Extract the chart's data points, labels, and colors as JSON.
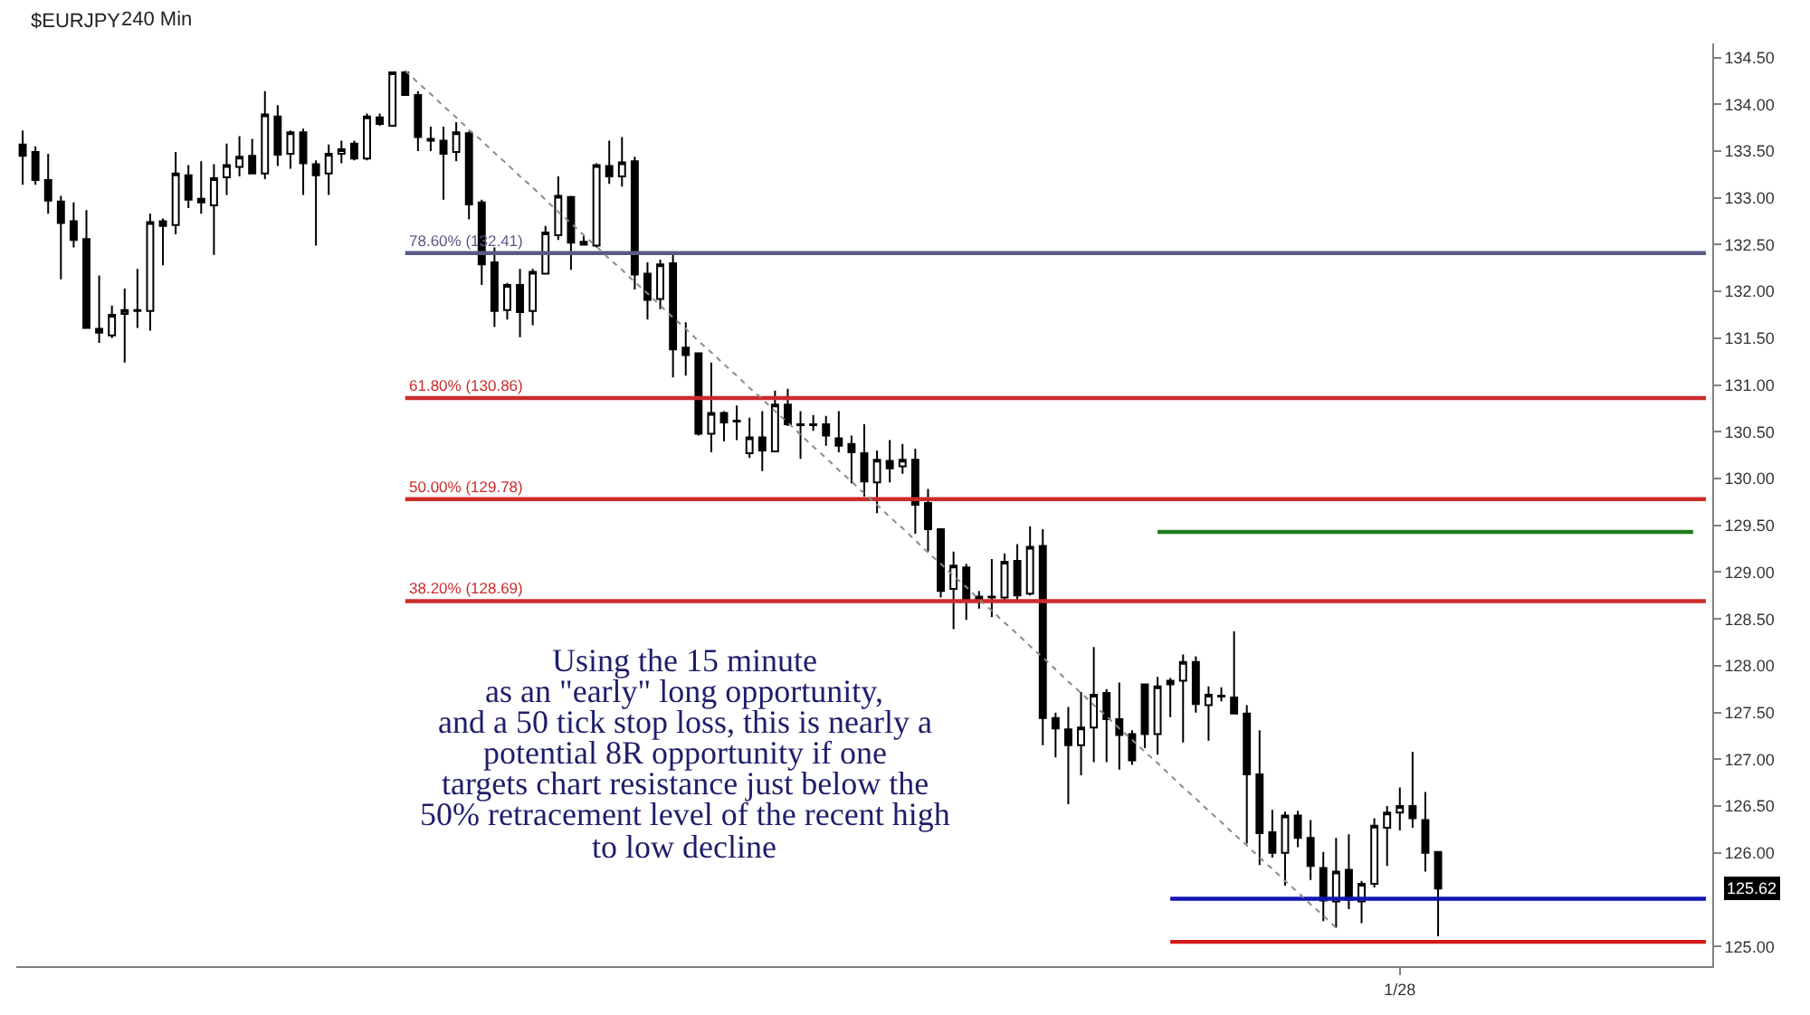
{
  "chart_data": {
    "type": "candlestick",
    "title": "$EURJPY",
    "subtitle": "240 Min",
    "color": "#000000",
    "categories": [
      null,
      null,
      null,
      null,
      null,
      null,
      null,
      null,
      null,
      null,
      null,
      null,
      null,
      null,
      null,
      null,
      null,
      null,
      null,
      null,
      null,
      null,
      null,
      null,
      null,
      null,
      null,
      null,
      null,
      null,
      null,
      null,
      null,
      null,
      null,
      null,
      null,
      null,
      null,
      null,
      null,
      null,
      null,
      null,
      null,
      null,
      null,
      null,
      null,
      null,
      null,
      null,
      null,
      null,
      null,
      null,
      null,
      null,
      null,
      null,
      null,
      null,
      null,
      null,
      null,
      null,
      null,
      null,
      null,
      null,
      null,
      null,
      null,
      null,
      null,
      null,
      null,
      null,
      null,
      null,
      null,
      null,
      null,
      null,
      null,
      null,
      null,
      null,
      null,
      null,
      null,
      null,
      null,
      null,
      null,
      null,
      null,
      null,
      null,
      null,
      null,
      null,
      null,
      null,
      null,
      null,
      null,
      null,
      "1/28",
      null,
      null,
      null,
      null,
      null,
      null,
      null,
      null,
      null,
      null,
      null,
      null,
      null,
      null,
      null,
      null,
      null,
      null,
      null,
      null,
      null,
      null,
      null,
      null
    ],
    "ohlc": [
      [
        133.57,
        133.72,
        133.14,
        133.45
      ],
      [
        133.49,
        133.55,
        133.14,
        133.19
      ],
      [
        133.19,
        133.47,
        132.83,
        132.97
      ],
      [
        132.96,
        133.02,
        132.13,
        132.73
      ],
      [
        132.75,
        132.95,
        132.47,
        132.55
      ],
      [
        132.56,
        132.87,
        131.6,
        131.61
      ],
      [
        131.6,
        132.17,
        131.45,
        131.56
      ],
      [
        131.53,
        131.85,
        131.5,
        131.75
      ],
      [
        131.76,
        132.03,
        131.24,
        131.8
      ],
      [
        131.79,
        132.24,
        131.61,
        131.8
      ],
      [
        131.79,
        132.83,
        131.58,
        132.74
      ],
      [
        132.75,
        132.78,
        132.28,
        132.7
      ],
      [
        132.71,
        133.49,
        132.61,
        133.26
      ],
      [
        133.24,
        133.35,
        132.89,
        132.98
      ],
      [
        132.99,
        133.39,
        132.83,
        132.95
      ],
      [
        132.92,
        133.36,
        132.39,
        133.21
      ],
      [
        133.22,
        133.58,
        133.03,
        133.35
      ],
      [
        133.33,
        133.66,
        133.23,
        133.44
      ],
      [
        133.45,
        133.63,
        133.25,
        133.26
      ],
      [
        133.26,
        134.14,
        133.2,
        133.89
      ],
      [
        133.87,
        133.99,
        133.34,
        133.46
      ],
      [
        133.47,
        133.72,
        133.31,
        133.7
      ],
      [
        133.7,
        133.74,
        133.03,
        133.37
      ],
      [
        133.36,
        133.4,
        132.49,
        133.24
      ],
      [
        133.26,
        133.57,
        133.03,
        133.47
      ],
      [
        133.47,
        133.61,
        133.37,
        133.52
      ],
      [
        133.58,
        133.61,
        133.4,
        133.42
      ],
      [
        133.42,
        133.9,
        133.4,
        133.87
      ],
      [
        133.86,
        133.9,
        133.77,
        133.79
      ],
      [
        133.77,
        134.35,
        133.76,
        134.34
      ],
      [
        134.34,
        134.36,
        134.09,
        134.1
      ],
      [
        134.1,
        134.14,
        133.5,
        133.65
      ],
      [
        133.63,
        133.76,
        133.5,
        133.61
      ],
      [
        133.61,
        133.76,
        132.98,
        133.47
      ],
      [
        133.49,
        133.81,
        133.39,
        133.7
      ],
      [
        133.69,
        133.71,
        132.77,
        132.93
      ],
      [
        132.95,
        132.98,
        132.07,
        132.29
      ],
      [
        132.31,
        132.47,
        131.62,
        131.79
      ],
      [
        131.8,
        132.09,
        131.7,
        132.07
      ],
      [
        132.07,
        132.24,
        131.51,
        131.78
      ],
      [
        131.79,
        132.24,
        131.64,
        132.21
      ],
      [
        132.19,
        132.7,
        132.19,
        132.63
      ],
      [
        132.6,
        133.23,
        132.55,
        133.02
      ],
      [
        133.01,
        133.02,
        132.23,
        132.52
      ],
      [
        132.53,
        132.59,
        132.49,
        132.5
      ],
      [
        132.49,
        133.37,
        132.47,
        133.35
      ],
      [
        133.34,
        133.61,
        133.15,
        133.23
      ],
      [
        133.23,
        133.65,
        133.12,
        133.38
      ],
      [
        133.39,
        133.44,
        132.02,
        132.18
      ],
      [
        132.19,
        132.31,
        131.7,
        131.91
      ],
      [
        131.92,
        132.34,
        131.81,
        132.29
      ],
      [
        132.3,
        132.42,
        131.08,
        131.38
      ],
      [
        131.4,
        131.67,
        131.1,
        131.32
      ],
      [
        131.34,
        131.35,
        130.46,
        130.48
      ],
      [
        130.48,
        131.24,
        130.28,
        130.7
      ],
      [
        130.7,
        130.72,
        130.4,
        130.6
      ],
      [
        130.62,
        130.78,
        130.41,
        130.61
      ],
      [
        130.27,
        130.65,
        130.22,
        130.44
      ],
      [
        130.44,
        130.72,
        130.08,
        130.3
      ],
      [
        130.29,
        130.94,
        130.29,
        130.79
      ],
      [
        130.79,
        130.96,
        130.56,
        130.58
      ],
      [
        130.58,
        130.72,
        130.21,
        130.57
      ],
      [
        130.58,
        130.68,
        130.51,
        130.57
      ],
      [
        130.58,
        130.67,
        130.35,
        130.46
      ],
      [
        130.43,
        130.72,
        130.28,
        130.35
      ],
      [
        130.37,
        130.46,
        129.95,
        130.28
      ],
      [
        130.27,
        130.58,
        129.81,
        129.97
      ],
      [
        129.96,
        130.3,
        129.63,
        130.2
      ],
      [
        130.19,
        130.41,
        129.96,
        130.11
      ],
      [
        130.13,
        130.37,
        130.05,
        130.2
      ],
      [
        130.2,
        130.32,
        129.41,
        129.72
      ],
      [
        129.74,
        129.89,
        129.22,
        129.46
      ],
      [
        129.46,
        129.47,
        128.73,
        128.8
      ],
      [
        128.82,
        129.22,
        128.39,
        129.07
      ],
      [
        129.05,
        129.09,
        128.49,
        128.69
      ],
      [
        128.7,
        128.8,
        128.61,
        128.74
      ],
      [
        128.74,
        129.14,
        128.52,
        128.73
      ],
      [
        128.73,
        129.2,
        128.69,
        129.11
      ],
      [
        129.12,
        129.3,
        128.69,
        128.75
      ],
      [
        128.77,
        129.49,
        128.75,
        129.27
      ],
      [
        129.28,
        129.46,
        127.15,
        127.44
      ],
      [
        127.44,
        127.5,
        127.02,
        127.33
      ],
      [
        127.32,
        127.56,
        126.52,
        127.15
      ],
      [
        127.15,
        127.72,
        126.83,
        127.34
      ],
      [
        127.34,
        128.2,
        126.97,
        127.69
      ],
      [
        127.71,
        127.75,
        126.97,
        127.43
      ],
      [
        127.43,
        127.82,
        126.89,
        127.26
      ],
      [
        127.27,
        127.31,
        126.94,
        126.99
      ],
      [
        127.8,
        127.81,
        127.12,
        127.27
      ],
      [
        127.27,
        127.88,
        127.05,
        127.78
      ],
      [
        127.8,
        127.87,
        127.45,
        127.84
      ],
      [
        127.84,
        128.12,
        127.18,
        128.04
      ],
      [
        128.04,
        128.1,
        127.5,
        127.59
      ],
      [
        127.58,
        127.78,
        127.2,
        127.69
      ],
      [
        127.68,
        127.77,
        127.62,
        127.67
      ],
      [
        127.66,
        128.37,
        127.48,
        127.49
      ],
      [
        127.49,
        127.58,
        126.1,
        126.84
      ],
      [
        126.84,
        127.31,
        125.87,
        126.21
      ],
      [
        126.22,
        126.46,
        125.95,
        126.0
      ],
      [
        126.0,
        126.44,
        125.65,
        126.4
      ],
      [
        126.4,
        126.45,
        126.06,
        126.16
      ],
      [
        126.16,
        126.35,
        125.71,
        125.86
      ],
      [
        125.84,
        126.01,
        125.27,
        125.49
      ],
      [
        125.48,
        126.16,
        125.2,
        125.8
      ],
      [
        125.82,
        126.2,
        125.4,
        125.5
      ],
      [
        125.48,
        125.7,
        125.25,
        125.67
      ],
      [
        125.67,
        126.37,
        125.63,
        126.29
      ],
      [
        126.27,
        126.5,
        125.86,
        126.43
      ],
      [
        126.43,
        126.7,
        126.24,
        126.5
      ],
      [
        126.5,
        127.08,
        126.27,
        126.37
      ],
      [
        126.35,
        126.65,
        125.8,
        126.0
      ],
      [
        126.01,
        126.01,
        125.11,
        125.62
      ],
      null,
      null,
      null,
      null,
      null,
      null,
      null,
      null,
      null,
      null,
      null,
      null,
      null,
      null,
      null,
      null,
      null,
      null,
      null,
      null,
      null
    ],
    "series": [
      {
        "type": "line",
        "name": "78.60% (132.41)",
        "color": "#5a5a86",
        "values": [
          null,
          null,
          null,
          null,
          null,
          null,
          null,
          null,
          null,
          null,
          null,
          null,
          null,
          null,
          null,
          null,
          null,
          null,
          null,
          null,
          null,
          null,
          null,
          null,
          null,
          null,
          null,
          null,
          null,
          null,
          132.41,
          132.41,
          132.41,
          132.41,
          132.41,
          132.41,
          132.41,
          132.41,
          132.41,
          132.41,
          132.41,
          132.41,
          132.41,
          132.41,
          132.41,
          132.41,
          132.41,
          132.41,
          132.41,
          132.41,
          132.41,
          132.41,
          132.41,
          132.41,
          132.41,
          132.41,
          132.41,
          132.41,
          132.41,
          132.41,
          132.41,
          132.41,
          132.41,
          132.41,
          132.41,
          132.41,
          132.41,
          132.41,
          132.41,
          132.41,
          132.41,
          132.41,
          132.41,
          132.41,
          132.41,
          132.41,
          132.41,
          132.41,
          132.41,
          132.41,
          132.41,
          132.41,
          132.41,
          132.41,
          132.41,
          132.41,
          132.41,
          132.41,
          132.41,
          132.41,
          132.41,
          132.41,
          132.41,
          132.41,
          132.41,
          132.41,
          132.41,
          132.41,
          132.41,
          132.41,
          132.41,
          132.41,
          132.41,
          132.41,
          132.41,
          132.41,
          132.41,
          132.41,
          132.41,
          132.41,
          132.41,
          132.41,
          132.41,
          132.41,
          132.41,
          132.41,
          132.41,
          132.41,
          132.41,
          132.41,
          132.41,
          132.41,
          132.41,
          132.41,
          132.41,
          132.41,
          132.41,
          132.41,
          132.41,
          132.41,
          132.41,
          132.41,
          132.41
        ]
      },
      {
        "type": "line",
        "name": "61.80% (130.86)",
        "color": "#cc2b2b",
        "values": [
          null,
          null,
          null,
          null,
          null,
          null,
          null,
          null,
          null,
          null,
          null,
          null,
          null,
          null,
          null,
          null,
          null,
          null,
          null,
          null,
          null,
          null,
          null,
          null,
          null,
          null,
          null,
          null,
          null,
          null,
          130.86,
          130.86,
          130.86,
          130.86,
          130.86,
          130.86,
          130.86,
          130.86,
          130.86,
          130.86,
          130.86,
          130.86,
          130.86,
          130.86,
          130.86,
          130.86,
          130.86,
          130.86,
          130.86,
          130.86,
          130.86,
          130.86,
          130.86,
          130.86,
          130.86,
          130.86,
          130.86,
          130.86,
          130.86,
          130.86,
          130.86,
          130.86,
          130.86,
          130.86,
          130.86,
          130.86,
          130.86,
          130.86,
          130.86,
          130.86,
          130.86,
          130.86,
          130.86,
          130.86,
          130.86,
          130.86,
          130.86,
          130.86,
          130.86,
          130.86,
          130.86,
          130.86,
          130.86,
          130.86,
          130.86,
          130.86,
          130.86,
          130.86,
          130.86,
          130.86,
          130.86,
          130.86,
          130.86,
          130.86,
          130.86,
          130.86,
          130.86,
          130.86,
          130.86,
          130.86,
          130.86,
          130.86,
          130.86,
          130.86,
          130.86,
          130.86,
          130.86,
          130.86,
          130.86,
          130.86,
          130.86,
          130.86,
          130.86,
          130.86,
          130.86,
          130.86,
          130.86,
          130.86,
          130.86,
          130.86,
          130.86,
          130.86,
          130.86,
          130.86,
          130.86,
          130.86,
          130.86,
          130.86,
          130.86,
          130.86,
          130.86,
          130.86,
          130.86
        ]
      },
      {
        "type": "line",
        "name": "50.00% (129.78)",
        "color": "#cc2b2b",
        "values": [
          null,
          null,
          null,
          null,
          null,
          null,
          null,
          null,
          null,
          null,
          null,
          null,
          null,
          null,
          null,
          null,
          null,
          null,
          null,
          null,
          null,
          null,
          null,
          null,
          null,
          null,
          null,
          null,
          null,
          null,
          129.78,
          129.78,
          129.78,
          129.78,
          129.78,
          129.78,
          129.78,
          129.78,
          129.78,
          129.78,
          129.78,
          129.78,
          129.78,
          129.78,
          129.78,
          129.78,
          129.78,
          129.78,
          129.78,
          129.78,
          129.78,
          129.78,
          129.78,
          129.78,
          129.78,
          129.78,
          129.78,
          129.78,
          129.78,
          129.78,
          129.78,
          129.78,
          129.78,
          129.78,
          129.78,
          129.78,
          129.78,
          129.78,
          129.78,
          129.78,
          129.78,
          129.78,
          129.78,
          129.78,
          129.78,
          129.78,
          129.78,
          129.78,
          129.78,
          129.78,
          129.78,
          129.78,
          129.78,
          129.78,
          129.78,
          129.78,
          129.78,
          129.78,
          129.78,
          129.78,
          129.78,
          129.78,
          129.78,
          129.78,
          129.78,
          129.78,
          129.78,
          129.78,
          129.78,
          129.78,
          129.78,
          129.78,
          129.78,
          129.78,
          129.78,
          129.78,
          129.78,
          129.78,
          129.78,
          129.78,
          129.78,
          129.78,
          129.78,
          129.78,
          129.78,
          129.78,
          129.78,
          129.78,
          129.78,
          129.78,
          129.78,
          129.78,
          129.78,
          129.78,
          129.78,
          129.78,
          129.78,
          129.78,
          129.78,
          129.78,
          129.78,
          129.78,
          129.78
        ]
      },
      {
        "type": "line",
        "name": "38.20% (128.69)",
        "color": "#cc2b2b",
        "values": [
          null,
          null,
          null,
          null,
          null,
          null,
          null,
          null,
          null,
          null,
          null,
          null,
          null,
          null,
          null,
          null,
          null,
          null,
          null,
          null,
          null,
          null,
          null,
          null,
          null,
          null,
          null,
          null,
          null,
          null,
          128.69,
          128.69,
          128.69,
          128.69,
          128.69,
          128.69,
          128.69,
          128.69,
          128.69,
          128.69,
          128.69,
          128.69,
          128.69,
          128.69,
          128.69,
          128.69,
          128.69,
          128.69,
          128.69,
          128.69,
          128.69,
          128.69,
          128.69,
          128.69,
          128.69,
          128.69,
          128.69,
          128.69,
          128.69,
          128.69,
          128.69,
          128.69,
          128.69,
          128.69,
          128.69,
          128.69,
          128.69,
          128.69,
          128.69,
          128.69,
          128.69,
          128.69,
          128.69,
          128.69,
          128.69,
          128.69,
          128.69,
          128.69,
          128.69,
          128.69,
          128.69,
          128.69,
          128.69,
          128.69,
          128.69,
          128.69,
          128.69,
          128.69,
          128.69,
          128.69,
          128.69,
          128.69,
          128.69,
          128.69,
          128.69,
          128.69,
          128.69,
          128.69,
          128.69,
          128.69,
          128.69,
          128.69,
          128.69,
          128.69,
          128.69,
          128.69,
          128.69,
          128.69,
          128.69,
          128.69,
          128.69,
          128.69,
          128.69,
          128.69,
          128.69,
          128.69,
          128.69,
          128.69,
          128.69,
          128.69,
          128.69,
          128.69,
          128.69,
          128.69,
          128.69,
          128.69,
          128.69,
          128.69,
          128.69,
          128.69,
          128.69,
          128.69,
          128.69
        ]
      },
      {
        "type": "line",
        "color": "#1e7d1e",
        "values": [
          null,
          null,
          null,
          null,
          null,
          null,
          null,
          null,
          null,
          null,
          null,
          null,
          null,
          null,
          null,
          null,
          null,
          null,
          null,
          null,
          null,
          null,
          null,
          null,
          null,
          null,
          null,
          null,
          null,
          null,
          null,
          null,
          null,
          null,
          null,
          null,
          null,
          null,
          null,
          null,
          null,
          null,
          null,
          null,
          null,
          null,
          null,
          null,
          null,
          null,
          null,
          null,
          null,
          null,
          null,
          null,
          null,
          null,
          null,
          null,
          null,
          null,
          null,
          null,
          null,
          null,
          null,
          null,
          null,
          null,
          null,
          null,
          null,
          null,
          null,
          null,
          null,
          null,
          null,
          null,
          null,
          null,
          null,
          null,
          null,
          null,
          null,
          null,
          null,
          129.43,
          129.43,
          129.43,
          129.43,
          129.43,
          129.43,
          129.43,
          129.43,
          129.43,
          129.43,
          129.43,
          129.43,
          129.43,
          129.43,
          129.43,
          129.43,
          129.43,
          129.43,
          129.43,
          129.43,
          129.43,
          129.43,
          129.43,
          129.43,
          129.43,
          129.43,
          129.43,
          129.43,
          129.43,
          129.43,
          129.43,
          129.43,
          129.43,
          129.43,
          129.43,
          129.43,
          129.43,
          129.43,
          129.43,
          129.43,
          129.43,
          129.43,
          129.43,
          null
        ]
      },
      {
        "type": "line",
        "color": "#1414b4",
        "values": [
          null,
          null,
          null,
          null,
          null,
          null,
          null,
          null,
          null,
          null,
          null,
          null,
          null,
          null,
          null,
          null,
          null,
          null,
          null,
          null,
          null,
          null,
          null,
          null,
          null,
          null,
          null,
          null,
          null,
          null,
          null,
          null,
          null,
          null,
          null,
          null,
          null,
          null,
          null,
          null,
          null,
          null,
          null,
          null,
          null,
          null,
          null,
          null,
          null,
          null,
          null,
          null,
          null,
          null,
          null,
          null,
          null,
          null,
          null,
          null,
          null,
          null,
          null,
          null,
          null,
          null,
          null,
          null,
          null,
          null,
          null,
          null,
          null,
          null,
          null,
          null,
          null,
          null,
          null,
          null,
          null,
          null,
          null,
          null,
          null,
          null,
          null,
          null,
          null,
          null,
          125.51,
          125.51,
          125.51,
          125.51,
          125.51,
          125.51,
          125.51,
          125.51,
          125.51,
          125.51,
          125.51,
          125.51,
          125.51,
          125.51,
          125.51,
          125.51,
          125.51,
          125.51,
          125.51,
          125.51,
          125.51,
          125.51,
          125.51,
          125.51,
          125.51,
          125.51,
          125.51,
          125.51,
          125.51,
          125.51,
          125.51,
          125.51,
          125.51,
          125.51,
          125.51,
          125.51,
          125.51,
          125.51,
          125.51,
          125.51,
          125.51,
          125.51,
          125.51
        ]
      },
      {
        "type": "line",
        "color": "#d41a1a",
        "values": [
          null,
          null,
          null,
          null,
          null,
          null,
          null,
          null,
          null,
          null,
          null,
          null,
          null,
          null,
          null,
          null,
          null,
          null,
          null,
          null,
          null,
          null,
          null,
          null,
          null,
          null,
          null,
          null,
          null,
          null,
          null,
          null,
          null,
          null,
          null,
          null,
          null,
          null,
          null,
          null,
          null,
          null,
          null,
          null,
          null,
          null,
          null,
          null,
          null,
          null,
          null,
          null,
          null,
          null,
          null,
          null,
          null,
          null,
          null,
          null,
          null,
          null,
          null,
          null,
          null,
          null,
          null,
          null,
          null,
          null,
          null,
          null,
          null,
          null,
          null,
          null,
          null,
          null,
          null,
          null,
          null,
          null,
          null,
          null,
          null,
          null,
          null,
          null,
          null,
          null,
          125.05,
          125.05,
          125.05,
          125.05,
          125.05,
          125.05,
          125.05,
          125.05,
          125.05,
          125.05,
          125.05,
          125.05,
          125.05,
          125.05,
          125.05,
          125.05,
          125.05,
          125.05,
          125.05,
          125.05,
          125.05,
          125.05,
          125.05,
          125.05,
          125.05,
          125.05,
          125.05,
          125.05,
          125.05,
          125.05,
          125.05,
          125.05,
          125.05,
          125.05,
          125.05,
          125.05,
          125.05,
          125.05,
          125.05,
          125.05,
          125.05,
          125.05,
          125.05
        ]
      },
      {
        "type": "line",
        "color": "#8a8a8a",
        "line_style": "dotted",
        "values": [
          null,
          null,
          null,
          null,
          null,
          null,
          null,
          null,
          null,
          null,
          null,
          null,
          null,
          null,
          null,
          null,
          null,
          null,
          null,
          null,
          null,
          null,
          null,
          null,
          null,
          null,
          null,
          null,
          null,
          null,
          134.36,
          134.23,
          134.11,
          133.98,
          133.86,
          133.73,
          133.61,
          133.48,
          133.36,
          133.23,
          133.11,
          132.98,
          132.85,
          132.73,
          132.6,
          132.48,
          132.35,
          132.23,
          132.1,
          131.98,
          131.85,
          131.72,
          131.6,
          131.47,
          131.35,
          131.22,
          131.1,
          130.97,
          130.85,
          130.72,
          130.6,
          130.47,
          130.34,
          130.22,
          130.09,
          129.97,
          129.84,
          129.72,
          129.59,
          129.47,
          129.34,
          129.21,
          129.09,
          128.96,
          128.84,
          128.71,
          128.59,
          128.46,
          128.34,
          128.21,
          128.09,
          127.96,
          127.83,
          127.71,
          127.58,
          127.46,
          127.33,
          127.21,
          127.08,
          126.96,
          126.83,
          126.7,
          126.58,
          126.45,
          126.33,
          126.2,
          126.08,
          125.95,
          125.83,
          125.7,
          125.58,
          125.45,
          125.33,
          125.2,
          null,
          null,
          null,
          null,
          null,
          null,
          null,
          null,
          null,
          null,
          null,
          null,
          null,
          null,
          null,
          null,
          null,
          null,
          null,
          null,
          null,
          null,
          null,
          null,
          null,
          null,
          null,
          null,
          null
        ]
      }
    ],
    "ylim": [
      124.79,
      134.65
    ],
    "yticks": [
      {
        "value": 134.5,
        "label": "134.50"
      },
      {
        "value": 134,
        "label": "134.00"
      },
      {
        "value": 133.5,
        "label": "133.50"
      },
      {
        "value": 133,
        "label": "133.00"
      },
      {
        "value": 132.5,
        "label": "132.50"
      },
      {
        "value": 132,
        "label": "132.00"
      },
      {
        "value": 131.5,
        "label": "131.50"
      },
      {
        "value": 131,
        "label": "131.00"
      },
      {
        "value": 130.5,
        "label": "130.50"
      },
      {
        "value": 130,
        "label": "130.00"
      },
      {
        "value": 129.5,
        "label": "129.50"
      },
      {
        "value": 129,
        "label": "129.00"
      },
      {
        "value": 128.5,
        "label": "128.50"
      },
      {
        "value": 128,
        "label": "128.00"
      },
      {
        "value": 127.5,
        "label": "127.50"
      },
      {
        "value": 127,
        "label": "127.00"
      },
      {
        "value": 126.5,
        "label": "126.50"
      },
      {
        "value": 126,
        "label": "126.00"
      },
      {
        "value": 125,
        "label": "125.00"
      }
    ],
    "annotations": [
      "Using the 15 minute\nas an \"early\" long opportunity,\nand a 50 tick stop loss, this is nearly a\npotential 8R opportunity if one\ntargets chart resistance just below the\n50% retracement level of the recent high\nto low decline",
      "125.62"
    ]
  }
}
